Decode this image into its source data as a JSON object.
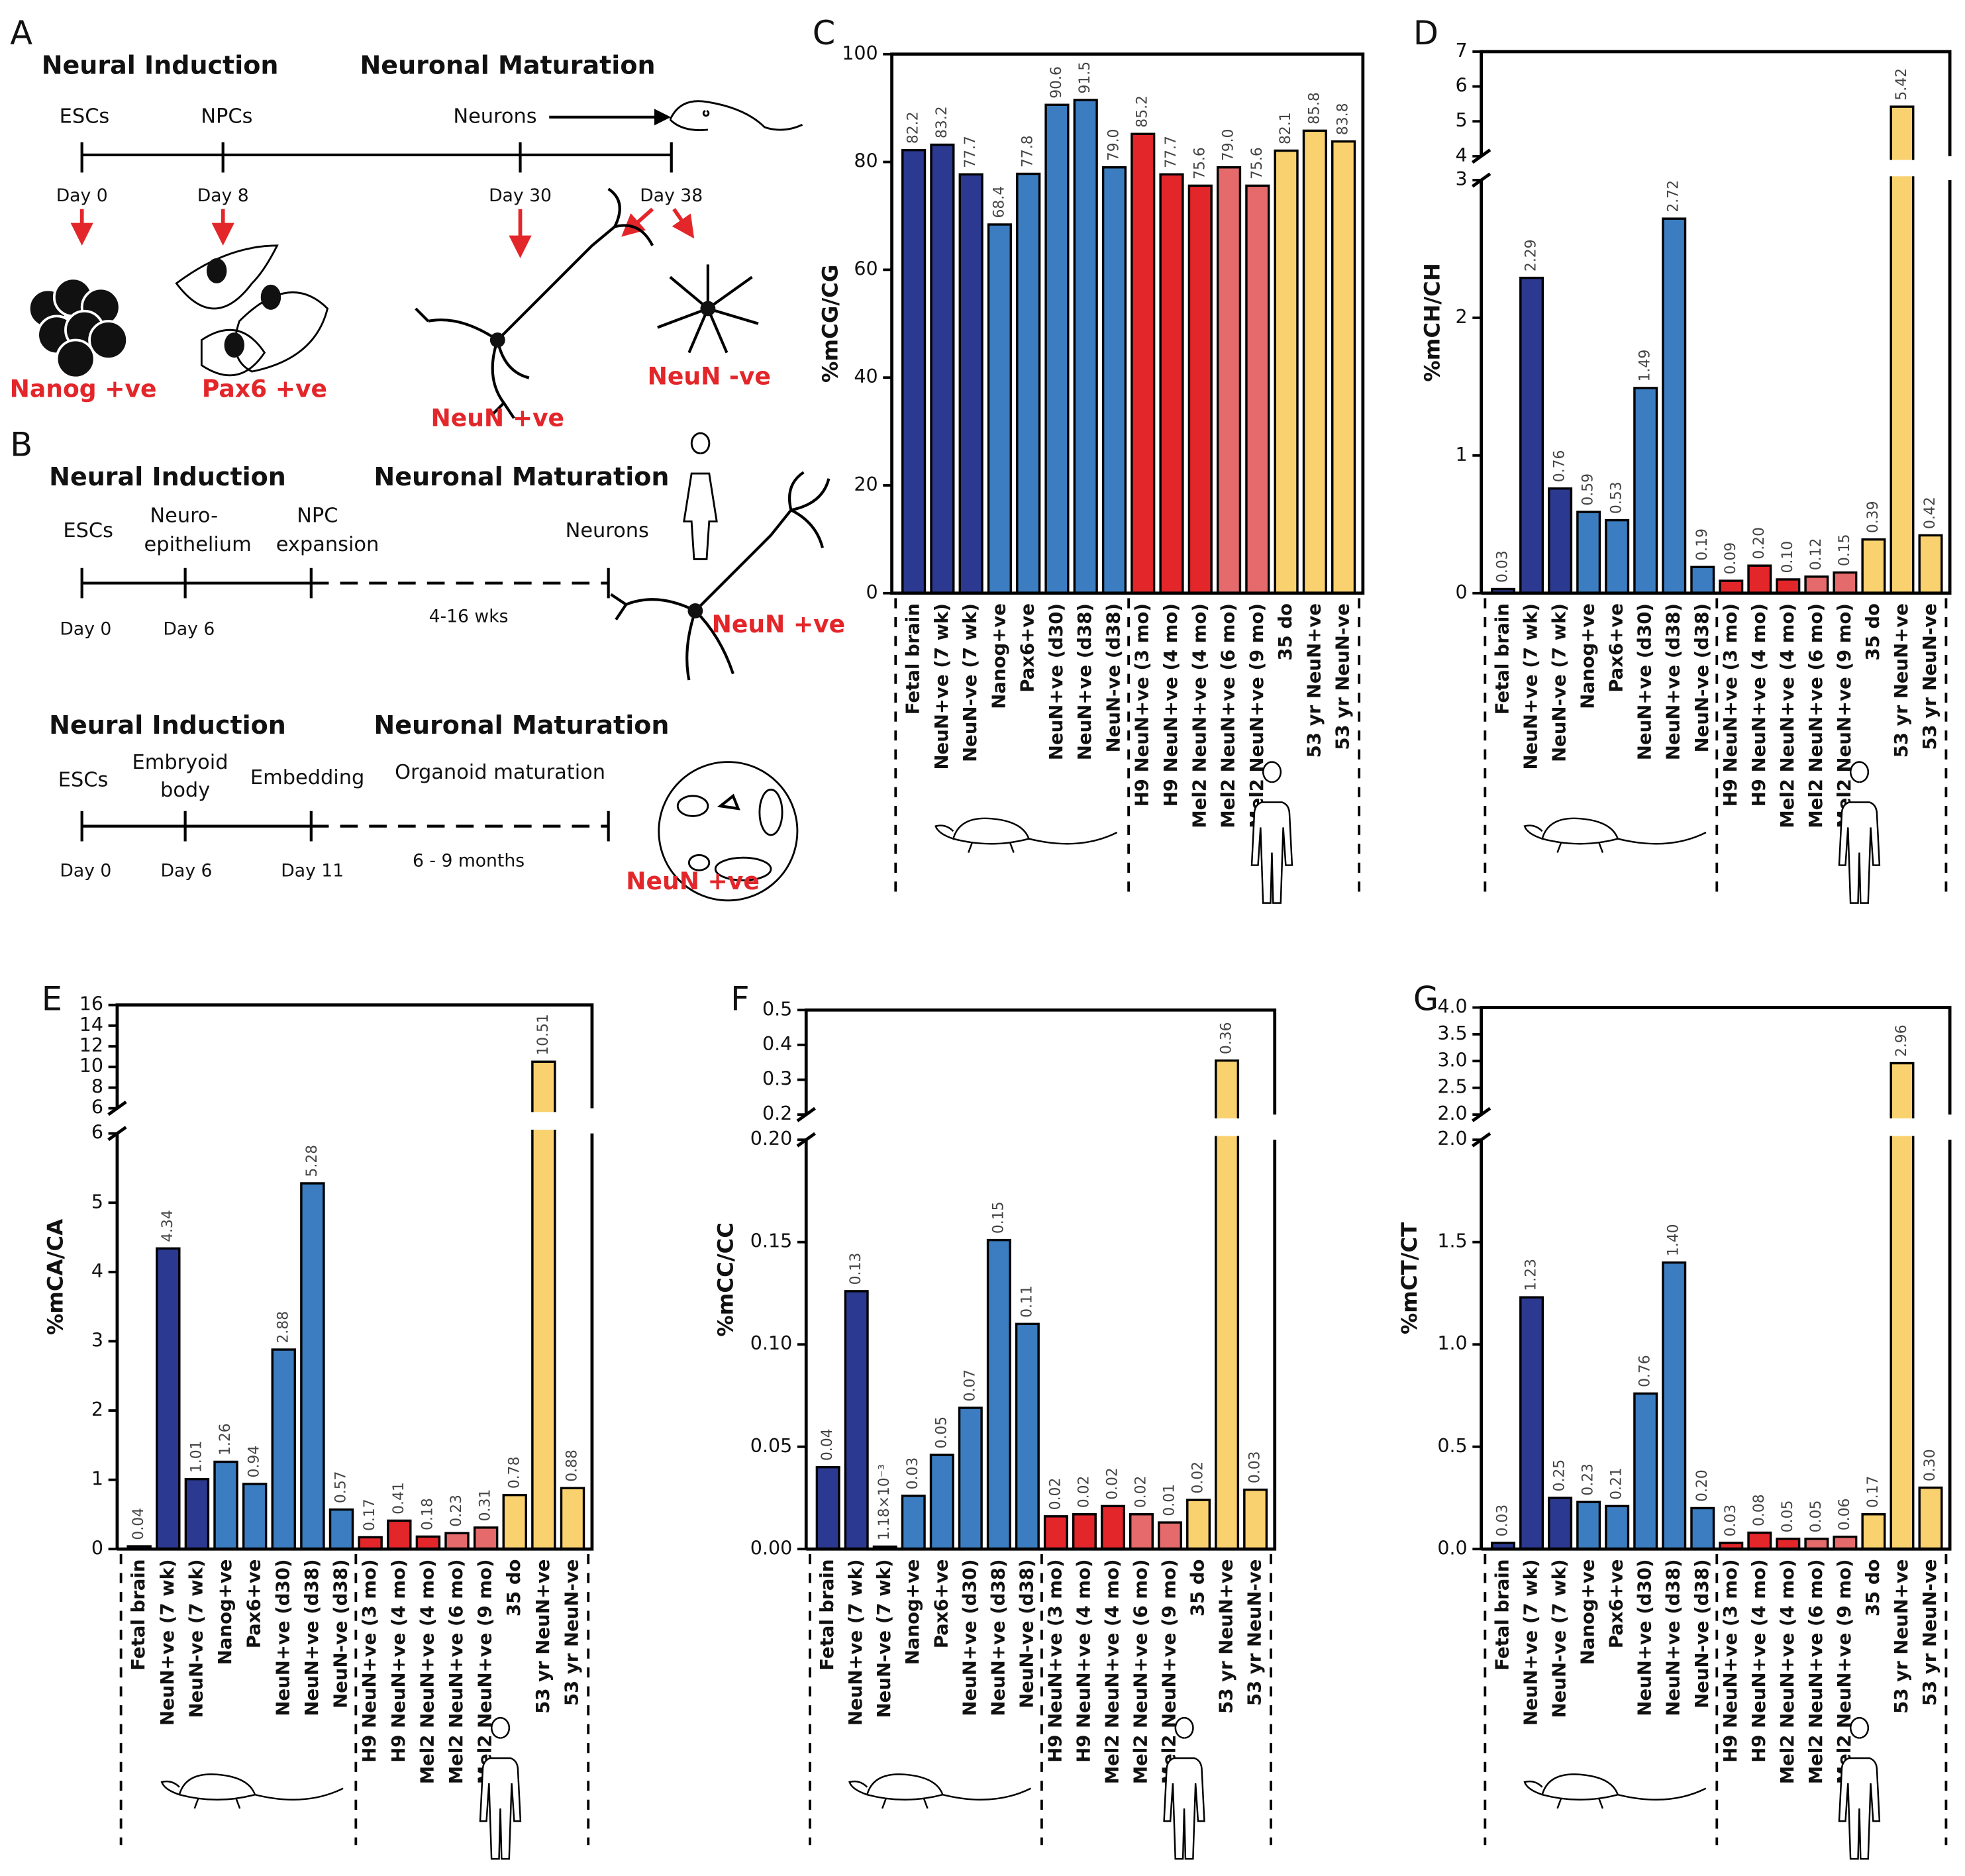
{
  "diagram": {
    "A": {
      "letter": "A",
      "induction": "Neural Induction",
      "maturation": "Neuronal Maturation",
      "escs": "ESCs",
      "npcs": "NPCs",
      "neurons": "Neurons",
      "days": [
        "Day 0",
        "Day 8",
        "Day 30",
        "Day 38"
      ],
      "nanog": "Nanog +ve",
      "pax6": "Pax6 +ve",
      "neun_pos": "NeuN +ve",
      "neun_neg": "NeuN -ve"
    },
    "B": {
      "letter": "B",
      "top": {
        "induction": "Neural Induction",
        "maturation": "Neuronal Maturation",
        "escs": "ESCs",
        "neuroepithelium": [
          "Neuro-",
          "epithelium"
        ],
        "npc": [
          "NPC",
          "expansion"
        ],
        "neurons": "Neurons",
        "days": [
          "Day 0",
          "Day 6"
        ],
        "duration": "4-16 wks",
        "neun": "NeuN +ve"
      },
      "bottom": {
        "induction": "Neural Induction",
        "maturation": "Neuronal Maturation",
        "escs": "ESCs",
        "eb": [
          "Embryoid",
          "body"
        ],
        "embedding": "Embedding",
        "organoid": "Organoid maturation",
        "days": [
          "Day 0",
          "Day 6",
          "Day 11"
        ],
        "duration": "6 - 9 months",
        "neun": "NeuN +ve"
      }
    }
  },
  "chart_data": [
    {
      "type": "bar",
      "label": "C",
      "ylabel": "%mCG/CG",
      "categories": [
        "Fetal brain",
        "NeuN+ve (7 wk)",
        "NeuN-ve (7 wk)",
        "Nanog+ve",
        "Pax6+ve",
        "NeuN+ve (d30)",
        "NeuN+ve (d38)",
        "NeuN-ve (d38)",
        "H9 NeuN+ve (3 mo)",
        "H9 NeuN+ve (4 mo)",
        "Mel2 NeuN+ve (4 mo)",
        "Mel2 NeuN+ve (6 mo)",
        "Mel2 NeuN+ve (9 mo)",
        "35 do",
        "53 yr NeuN+ve",
        "53 yr NeuN-ve"
      ],
      "values": [
        82.2,
        83.2,
        77.7,
        68.4,
        77.8,
        90.6,
        91.5,
        79.0,
        85.2,
        77.7,
        75.6,
        79.0,
        75.6,
        82.1,
        85.8,
        83.8
      ],
      "value_labels": [
        "82.2",
        "83.2",
        "77.7",
        "68.4",
        "77.8",
        "90.6",
        "91.5",
        "79.0",
        "85.2",
        "77.7",
        "75.6",
        "79.0",
        "75.6",
        "82.1",
        "85.8",
        "83.8"
      ],
      "colors": [
        "#2b3990",
        "#2b3990",
        "#2b3990",
        "#3b7dc0",
        "#3b7dc0",
        "#3b7dc0",
        "#3b7dc0",
        "#3b7dc0",
        "#e3262a",
        "#e3262a",
        "#e3262a",
        "#e46a6b",
        "#e46a6b",
        "#f9d16e",
        "#f9d16e",
        "#f9d16e"
      ],
      "ylim": [
        0,
        100
      ],
      "yticks": [
        0,
        20,
        40,
        60,
        80,
        100
      ]
    },
    {
      "type": "bar",
      "label": "D",
      "ylabel": "%mCH/CH",
      "categories": [
        "Fetal brain",
        "NeuN+ve (7 wk)",
        "NeuN-ve (7 wk)",
        "Nanog+ve",
        "Pax6+ve",
        "NeuN+ve (d30)",
        "NeuN+ve (d38)",
        "NeuN-ve (d38)",
        "H9 NeuN+ve (3 mo)",
        "H9 NeuN+ve (4 mo)",
        "Mel2 NeuN+ve (4 mo)",
        "Mel2 NeuN+ve (6 mo)",
        "Mel2 NeuN+ve (9 mo)",
        "35 do",
        "53 yr NeuN+ve",
        "53 yr NeuN-ve"
      ],
      "values": [
        0.03,
        2.29,
        0.76,
        0.59,
        0.53,
        1.49,
        2.72,
        0.19,
        0.09,
        0.2,
        0.1,
        0.12,
        0.15,
        0.39,
        5.42,
        0.42
      ],
      "value_labels": [
        "0.03",
        "2.29",
        "0.76",
        "0.59",
        "0.53",
        "1.49",
        "2.72",
        "0.19",
        "0.09",
        "0.20",
        "0.10",
        "0.12",
        "0.15",
        "0.39",
        "5.42",
        "0.42"
      ],
      "colors": [
        "#2b3990",
        "#2b3990",
        "#2b3990",
        "#3b7dc0",
        "#3b7dc0",
        "#3b7dc0",
        "#3b7dc0",
        "#3b7dc0",
        "#e3262a",
        "#e3262a",
        "#e3262a",
        "#e46a6b",
        "#e46a6b",
        "#f9d16e",
        "#f9d16e",
        "#f9d16e"
      ],
      "ylim": [
        0,
        3
      ],
      "yticks": [
        0,
        1,
        2,
        3
      ],
      "upper_ylim": [
        4,
        7
      ],
      "upper_yticks": [
        4,
        5,
        6,
        7
      ]
    },
    {
      "type": "bar",
      "label": "E",
      "ylabel": "%mCA/CA",
      "categories": [
        "Fetal brain",
        "NeuN+ve (7 wk)",
        "NeuN-ve (7 wk)",
        "Nanog+ve",
        "Pax6+ve",
        "NeuN+ve (d30)",
        "NeuN+ve (d38)",
        "NeuN-ve (d38)",
        "H9 NeuN+ve (3 mo)",
        "H9 NeuN+ve (4 mo)",
        "Mel2 NeuN+ve (4 mo)",
        "Mel2 NeuN+ve (6 mo)",
        "Mel2 NeuN+ve (9 mo)",
        "35 do",
        "53 yr NeuN+ve",
        "53 yr NeuN-ve"
      ],
      "values": [
        0.04,
        4.34,
        1.01,
        1.26,
        0.94,
        2.88,
        5.28,
        0.57,
        0.17,
        0.41,
        0.18,
        0.23,
        0.31,
        0.78,
        10.51,
        0.88
      ],
      "value_labels": [
        "0.04",
        "4.34",
        "1.01",
        "1.26",
        "0.94",
        "2.88",
        "5.28",
        "0.57",
        "0.17",
        "0.41",
        "0.18",
        "0.23",
        "0.31",
        "0.78",
        "10.51",
        "0.88"
      ],
      "colors": [
        "#2b3990",
        "#2b3990",
        "#2b3990",
        "#3b7dc0",
        "#3b7dc0",
        "#3b7dc0",
        "#3b7dc0",
        "#3b7dc0",
        "#e3262a",
        "#e3262a",
        "#e3262a",
        "#e46a6b",
        "#e46a6b",
        "#f9d16e",
        "#f9d16e",
        "#f9d16e"
      ],
      "ylim": [
        0,
        6
      ],
      "yticks": [
        0,
        1,
        2,
        3,
        4,
        5,
        6
      ],
      "upper_ylim": [
        6,
        16
      ],
      "upper_yticks": [
        6,
        8,
        10,
        12,
        14,
        16
      ]
    },
    {
      "type": "bar",
      "label": "F",
      "ylabel": "%mCC/CC",
      "categories": [
        "Fetal brain",
        "NeuN+ve (7 wk)",
        "NeuN-ve (7 wk)",
        "Nanog+ve",
        "Pax6+ve",
        "NeuN+ve (d30)",
        "NeuN+ve (d38)",
        "NeuN-ve (d38)",
        "H9 NeuN+ve (3 mo)",
        "H9 NeuN+ve (4 mo)",
        "Mel2 NeuN+ve (4 mo)",
        "Mel2 NeuN+ve (6 mo)",
        "Mel2 NeuN+ve (9 mo)",
        "35 do",
        "53 yr NeuN+ve",
        "53 yr NeuN-ve"
      ],
      "values": [
        0.04,
        0.126,
        0.00118,
        0.026,
        0.046,
        0.069,
        0.151,
        0.11,
        0.016,
        0.017,
        0.021,
        0.017,
        0.013,
        0.024,
        0.355,
        0.029
      ],
      "value_labels": [
        "0.04",
        "0.13",
        "1.18×10⁻³",
        "0.03",
        "0.05",
        "0.07",
        "0.15",
        "0.11",
        "0.02",
        "0.02",
        "0.02",
        "0.02",
        "0.01",
        "0.02",
        "0.36",
        "0.03"
      ],
      "colors": [
        "#2b3990",
        "#2b3990",
        "#2b3990",
        "#3b7dc0",
        "#3b7dc0",
        "#3b7dc0",
        "#3b7dc0",
        "#3b7dc0",
        "#e3262a",
        "#e3262a",
        "#e3262a",
        "#e46a6b",
        "#e46a6b",
        "#f9d16e",
        "#f9d16e",
        "#f9d16e"
      ],
      "ylim": [
        0,
        0.2
      ],
      "yticks": [
        {
          "value": 0,
          "label": "0.00"
        },
        {
          "value": 0.05,
          "label": "0.05"
        },
        {
          "value": 0.1,
          "label": "0.10"
        },
        {
          "value": 0.15,
          "label": "0.15"
        },
        {
          "value": 0.2,
          "label": "0.20"
        }
      ],
      "upper_ylim": [
        0.2,
        0.5
      ],
      "upper_yticks": [
        0.2,
        0.3,
        0.4,
        0.5
      ]
    },
    {
      "type": "bar",
      "label": "G",
      "ylabel": "%mCT/CT",
      "categories": [
        "Fetal brain",
        "NeuN+ve (7 wk)",
        "NeuN-ve (7 wk)",
        "Nanog+ve",
        "Pax6+ve",
        "NeuN+ve (d30)",
        "NeuN+ve (d38)",
        "NeuN-ve (d38)",
        "H9 NeuN+ve (3 mo)",
        "H9 NeuN+ve (4 mo)",
        "Mel2 NeuN+ve (4 mo)",
        "Mel2 NeuN+ve (6 mo)",
        "Mel2 NeuN+ve (9 mo)",
        "35 do",
        "53 yr NeuN+ve",
        "53 yr NeuN-ve"
      ],
      "values": [
        0.03,
        1.23,
        0.25,
        0.23,
        0.21,
        0.76,
        1.4,
        0.2,
        0.03,
        0.08,
        0.05,
        0.05,
        0.06,
        0.17,
        2.96,
        0.3
      ],
      "value_labels": [
        "0.03",
        "1.23",
        "0.25",
        "0.23",
        "0.21",
        "0.76",
        "1.40",
        "0.20",
        "0.03",
        "0.08",
        "0.05",
        "0.05",
        "0.06",
        "0.17",
        "2.96",
        "0.30"
      ],
      "colors": [
        "#2b3990",
        "#2b3990",
        "#2b3990",
        "#3b7dc0",
        "#3b7dc0",
        "#3b7dc0",
        "#3b7dc0",
        "#3b7dc0",
        "#e3262a",
        "#e3262a",
        "#e3262a",
        "#e46a6b",
        "#e46a6b",
        "#f9d16e",
        "#f9d16e",
        "#f9d16e"
      ],
      "ylim": [
        0,
        2
      ],
      "yticks": [
        {
          "value": 0,
          "label": "0.0"
        },
        {
          "value": 0.5,
          "label": "0.5"
        },
        {
          "value": 1,
          "label": "1.0"
        },
        {
          "value": 1.5,
          "label": "1.5"
        },
        {
          "value": 2,
          "label": "2.0"
        }
      ],
      "upper_ylim": [
        2,
        4
      ],
      "upper_yticks": [
        {
          "value": 2,
          "label": "2.0"
        },
        {
          "value": 2.5,
          "label": "2.5"
        },
        {
          "value": 3,
          "label": "3.0"
        },
        {
          "value": 3.5,
          "label": "3.5"
        },
        {
          "value": 4,
          "label": "4.0"
        }
      ]
    }
  ]
}
